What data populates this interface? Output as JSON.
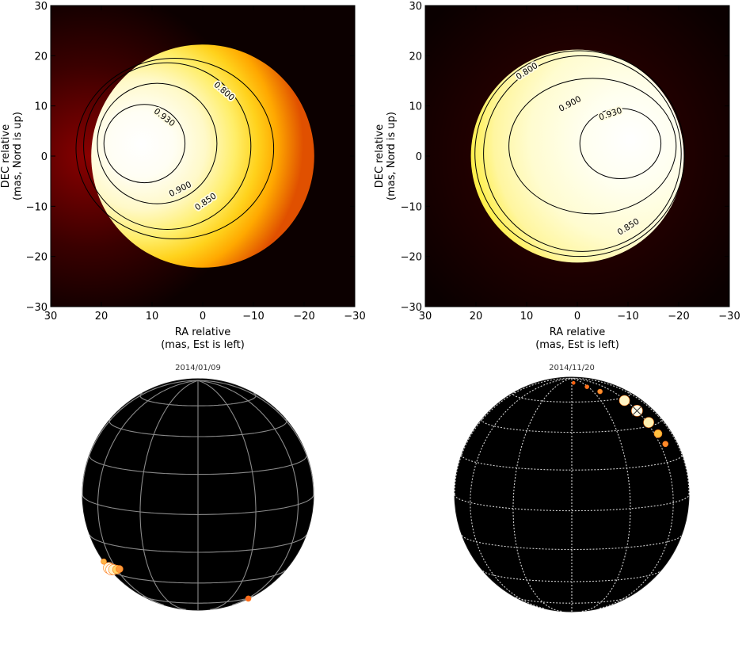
{
  "chart_data": [
    {
      "type": "heatmap",
      "panel": "top-left",
      "xlabel": [
        "RA relative",
        "(mas, Est is left)"
      ],
      "ylabel": [
        "DEC relative",
        "(mas, Nord is up)"
      ],
      "xlim": [
        30,
        -30
      ],
      "ylim": [
        -30,
        30
      ],
      "xticks": [
        30,
        20,
        10,
        0,
        -10,
        -20,
        -30
      ],
      "yticks": [
        -30,
        -20,
        -10,
        0,
        10,
        20,
        30
      ],
      "xtick_labels": [
        "30",
        "20",
        "10",
        "0",
        "−10",
        "−20",
        "−30"
      ],
      "ytick_labels": [
        "−30",
        "−20",
        "−10",
        "0",
        "10",
        "20",
        "30"
      ],
      "star": {
        "center": [
          0,
          0
        ],
        "radius": 22
      },
      "peak": [
        12,
        2
      ],
      "contours": [
        {
          "level": 0.93,
          "label": "0.930",
          "center": [
            11.5,
            2.5
          ],
          "rx": 8.0,
          "ry": 7.8,
          "label_at": [
            7.5,
            7.8
          ]
        },
        {
          "level": 0.9,
          "label": "0.900",
          "center": [
            9.0,
            2.5
          ],
          "rx": 11.8,
          "ry": 12.0,
          "label_at": [
            4.5,
            -6.5
          ]
        },
        {
          "level": 0.85,
          "label": "0.850",
          "center": [
            7.0,
            2.0
          ],
          "rx": 16.5,
          "ry": 16.6,
          "label_at": [
            -0.5,
            -9.0
          ]
        },
        {
          "level": 0.8,
          "label": "0.800",
          "center": [
            5.5,
            1.5
          ],
          "rx": 19.5,
          "ry": 18.0,
          "label_at": [
            -4.3,
            13.0
          ]
        }
      ]
    },
    {
      "type": "heatmap",
      "panel": "top-right",
      "xlabel": [
        "RA relative",
        "(mas, Est is left)"
      ],
      "ylabel": [
        "DEC relative",
        "(mas, Nord is up)"
      ],
      "xlim": [
        30,
        -30
      ],
      "ylim": [
        -30,
        30
      ],
      "xticks": [
        30,
        20,
        10,
        0,
        -10,
        -20,
        -30
      ],
      "yticks": [
        -30,
        -20,
        -10,
        0,
        10,
        20,
        30
      ],
      "xtick_labels": [
        "30",
        "20",
        "10",
        "0",
        "−10",
        "−20",
        "−30"
      ],
      "ytick_labels": [
        "−30",
        "−20",
        "−10",
        "0",
        "10",
        "20",
        "30"
      ],
      "star": {
        "center": [
          0,
          0
        ],
        "radius": 21
      },
      "peak": [
        -11,
        3
      ],
      "contours": [
        {
          "level": 0.93,
          "label": "0.930",
          "center": [
            -8.5,
            2.5
          ],
          "rx": 8.0,
          "ry": 7.0,
          "label_at": [
            -6.5,
            8.5
          ]
        },
        {
          "level": 0.9,
          "label": "0.900",
          "center": [
            -3.0,
            2.0
          ],
          "rx": 16.5,
          "ry": 13.5,
          "label_at": [
            1.5,
            10.5
          ]
        },
        {
          "level": 0.85,
          "label": "0.850",
          "center": [
            -1.0,
            0.5
          ],
          "rx": 19.5,
          "ry": 19.5,
          "label_at": [
            -10.0,
            -14.0
          ]
        },
        {
          "level": 0.8,
          "label": "0.800",
          "center": [
            -0.5,
            0.5
          ],
          "rx": 20.7,
          "ry": 20.5,
          "label_at": [
            10.0,
            17.0
          ]
        }
      ]
    }
  ],
  "globes": [
    {
      "title": "2014/01/09",
      "spots": [
        {
          "lon_rel": -78,
          "lat": -38,
          "size": 7.0,
          "color": "#fff6dc"
        },
        {
          "lon_rel": -72,
          "lat": -38,
          "size": 7.0,
          "color": "#ffffff"
        },
        {
          "lon_rel": -66,
          "lat": -37,
          "size": 6.5,
          "color": "#fff3c8"
        },
        {
          "lon_rel": -60,
          "lat": -36,
          "size": 5.5,
          "color": "#ffd66a"
        },
        {
          "lon_rel": -56,
          "lat": -35,
          "size": 4.5,
          "color": "#ff9a3a"
        },
        {
          "lon_rel": -84,
          "lat": -35,
          "size": 3.5,
          "color": "#ffb545"
        },
        {
          "lon_rel": 68,
          "lat": -62,
          "size": 3.5,
          "color": "#ff6a20"
        }
      ]
    },
    {
      "title": "2014/11/20",
      "spots": [
        {
          "lon_rel": 58,
          "lat": 58,
          "size": 6.5,
          "color": "#fff4c4"
        },
        {
          "lon_rel": 60,
          "lat": 50,
          "size": 7.0,
          "color": "#fffbe8"
        },
        {
          "lon_rel": 62,
          "lat": 42,
          "size": 6.5,
          "color": "#fff0b0"
        },
        {
          "lon_rel": 64,
          "lat": 35,
          "size": 5.0,
          "color": "#ffc040"
        },
        {
          "lon_rel": 66,
          "lat": 29,
          "size": 3.5,
          "color": "#ff8a2a"
        },
        {
          "lon_rel": 40,
          "lat": 68,
          "size": 3.0,
          "color": "#ff9030"
        },
        {
          "lon_rel": 28,
          "lat": 74,
          "size": 2.5,
          "color": "#ff7020"
        },
        {
          "lon_rel": 5,
          "lat": 80,
          "size": 2.0,
          "color": "#ff5a10"
        }
      ]
    }
  ]
}
